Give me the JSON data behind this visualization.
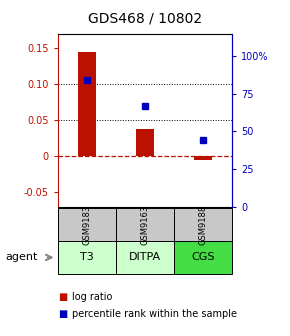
{
  "title": "GDS468 / 10802",
  "samples": [
    "GSM9183",
    "GSM9163",
    "GSM9188"
  ],
  "agents": [
    "T3",
    "DITPA",
    "CGS"
  ],
  "log_ratios": [
    0.145,
    0.038,
    -0.005
  ],
  "percentile_ranks": [
    84,
    67,
    44
  ],
  "ylim_left": [
    -0.07,
    0.17
  ],
  "ylim_right": [
    0,
    115
  ],
  "yticks_left": [
    -0.05,
    0.0,
    0.05,
    0.1,
    0.15
  ],
  "yticks_right": [
    0,
    25,
    50,
    75,
    100
  ],
  "ytick_labels_right": [
    "0",
    "25",
    "50",
    "75",
    "100%"
  ],
  "bar_color": "#bb1100",
  "marker_color": "#0000bb",
  "zero_line_color": "#bb1100",
  "sample_box_color": "#c8c8c8",
  "agent_colors": [
    "#ccffcc",
    "#ccffcc",
    "#44dd44"
  ],
  "title_fontsize": 10,
  "tick_fontsize": 7,
  "legend_fontsize": 7
}
